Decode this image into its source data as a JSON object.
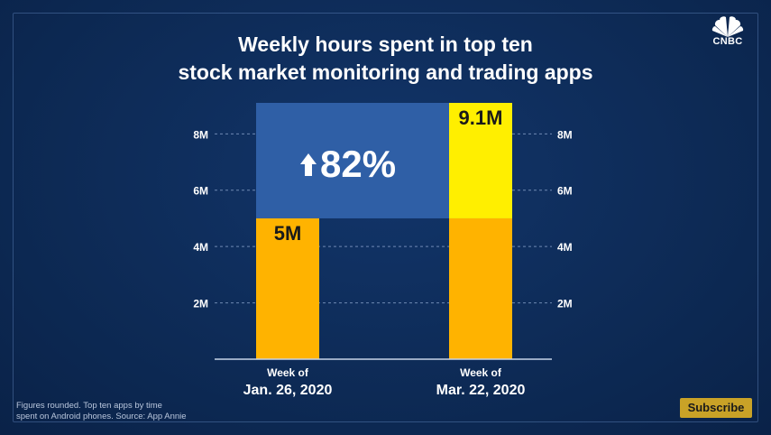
{
  "header": {
    "title_line1": "Weekly hours spent in top ten",
    "title_line2": "stock market monitoring and trading apps"
  },
  "logo": {
    "icon": "peacock-icon",
    "text": "CNBC"
  },
  "footnote": {
    "line1": "Figures rounded. Top ten apps by time",
    "line2": "spent on Android phones. Source: App Annie"
  },
  "subscribe_label": "Subscribe",
  "colors": {
    "bar": "#ffb300",
    "increase": "#ffef00",
    "highlight_box": "#2f5fa6",
    "background": "#0d2a55"
  },
  "chart_data": {
    "type": "bar",
    "categories": [
      {
        "line1": "Week of",
        "line2": "Jan. 26, 2020"
      },
      {
        "line1": "Week of",
        "line2": "Mar. 22, 2020"
      }
    ],
    "values": [
      5,
      9.1
    ],
    "value_labels": [
      "5M",
      "9.1M"
    ],
    "base_value": 5,
    "change_label": "82%",
    "change_icon": "up-arrow-icon",
    "yticks": [
      {
        "value": 2,
        "label": "2M"
      },
      {
        "value": 4,
        "label": "4M"
      },
      {
        "value": 6,
        "label": "6M"
      },
      {
        "value": 8,
        "label": "8M"
      }
    ],
    "ylim": [
      0,
      9.1
    ],
    "grid": true,
    "axis_labels_both_sides": true
  }
}
